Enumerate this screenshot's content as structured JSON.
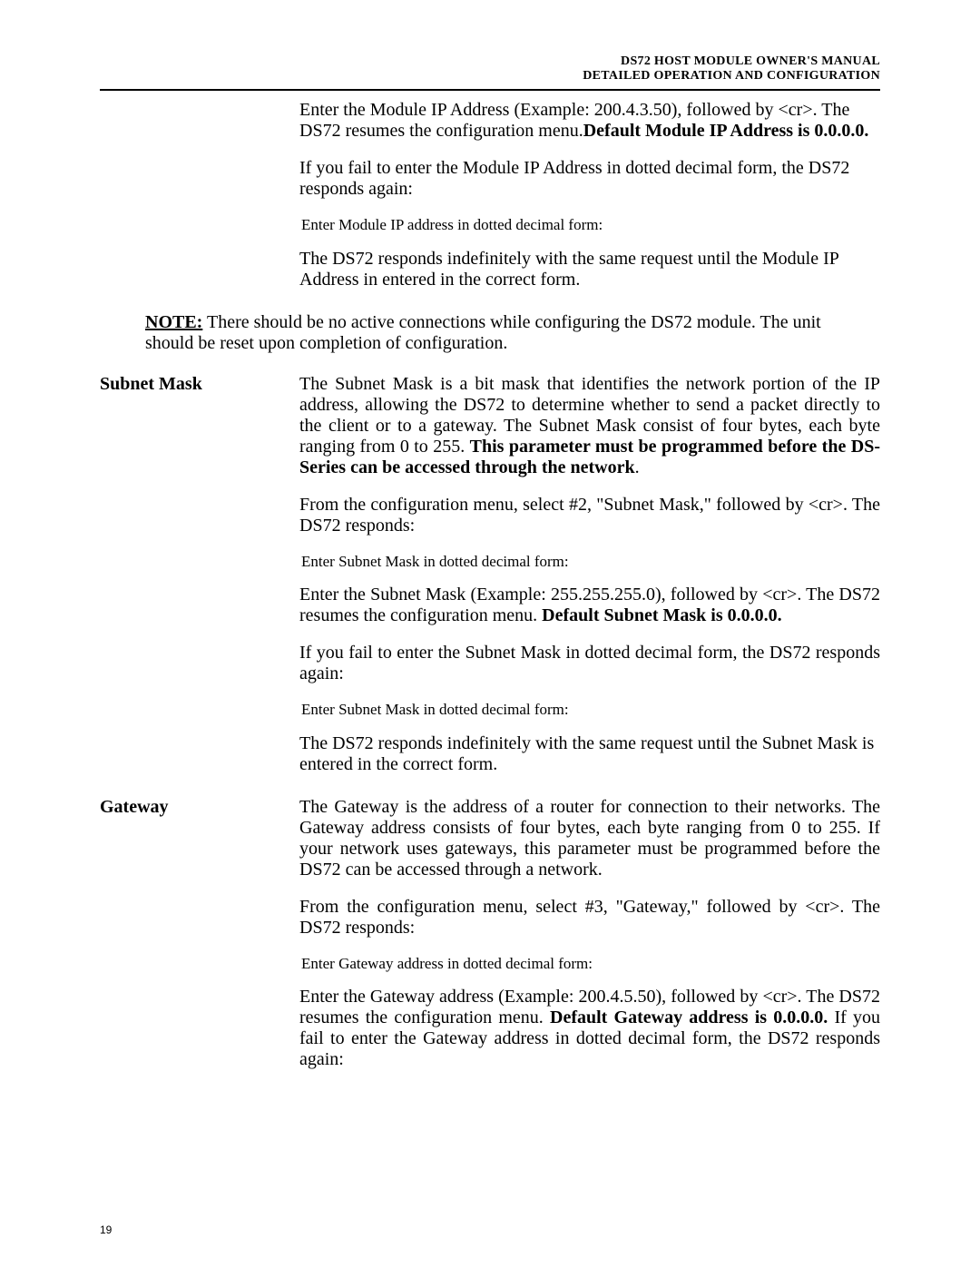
{
  "header": {
    "line1": "DS72 HOST MODULE OWNER'S MANUAL",
    "line2": "DETAILED OPERATION AND CONFIGURATION"
  },
  "module_ip": {
    "p1a": "Enter the Module IP Address (Example:  200.4.3.50), followed by <cr>. The DS72 resumes the configuration menu.",
    "p1b": "Default Module IP Address is 0.0.0.0.",
    "p2": "If you fail to enter the Module IP Address in dotted decimal form, the DS72 responds again:",
    "prompt": "Enter Module IP address in dotted decimal form:",
    "p3": "The DS72 responds indefinitely with the same request  until the Module IP Address in entered in the correct form."
  },
  "note": {
    "label": "NOTE:",
    "text": "  There should be no active connections while configuring the DS72 module. The unit should be reset upon completion of configuration."
  },
  "subnet": {
    "label": "Subnet Mask",
    "p1a": "The Subnet Mask is a bit mask that identifies the network portion of the IP address, allowing the DS72 to determine whether to send a packet directly to the client or to a gateway. The Subnet Mask consist of four bytes, each byte ranging from 0 to 255.   ",
    "p1b": "This parameter must be programmed before the DS-Series can be accessed through the network",
    "p2": "From the configuration menu, select #2, \"Subnet Mask,\" followed by <cr>.  The DS72 responds:",
    "prompt1": "Enter Subnet Mask in dotted decimal form:",
    "p3a": "Enter the Subnet Mask (Example:  255.255.255.0), followed by <cr>.  The DS72 resumes the configuration menu. ",
    "p3b": "Default Subnet Mask is 0.0.0.0.",
    "p4": "If you fail to enter the Subnet Mask in dotted decimal form, the DS72 responds again:",
    "prompt2": "Enter Subnet Mask in dotted decimal form:",
    "p5": "The DS72 responds indefinitely with the same request  until    the    Subnet Mask is entered in the correct form."
  },
  "gateway": {
    "label": "Gateway",
    "p1": "The Gateway is the address of a router for connection to their networks. The Gateway address consists of four bytes, each byte ranging from 0 to 255.  If your network uses gateways, this parameter must be programmed before the DS72 can be accessed through a network.",
    "p2": "From the configuration menu, select #3, \"Gateway,\" followed by <cr>. The DS72 responds:",
    "prompt": "Enter Gateway address in dotted decimal form:",
    "p3a": "Enter the Gateway address (Example: 200.4.5.50), followed by <cr>.  The DS72 resumes the configuration menu. ",
    "p3b": "Default Gateway address is 0.0.0.0.",
    "p3c": " If you fail to enter the Gateway address in dotted decimal form, the DS72 responds again:"
  },
  "page_number": "19"
}
